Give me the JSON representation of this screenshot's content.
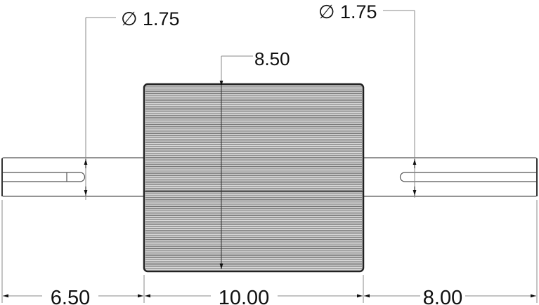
{
  "dimensions": {
    "left_diameter": {
      "symbol": "∅",
      "value": "1.75"
    },
    "right_diameter": {
      "symbol": "∅",
      "value": "1.75"
    },
    "drum_diameter": "8.50",
    "left_shaft_length": "6.50",
    "drum_length": "10.00",
    "right_shaft_length": "8.00"
  }
}
